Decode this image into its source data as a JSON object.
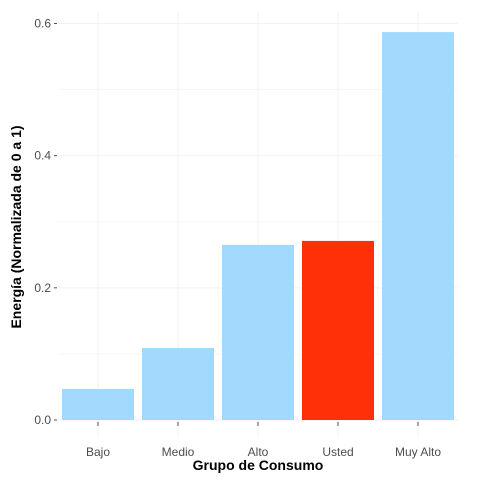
{
  "chart_data": {
    "type": "bar",
    "categories": [
      "Bajo",
      "Medio",
      "Alto",
      "Usted",
      "Muy Alto"
    ],
    "values": [
      0.047,
      0.109,
      0.265,
      0.271,
      0.587
    ],
    "colors": [
      "#a3d9fc",
      "#a3d9fc",
      "#a3d9fc",
      "#ff2f08",
      "#a3d9fc"
    ],
    "title": "",
    "xlabel": "Grupo de Consumo",
    "ylabel": "Energía (Normalizada de 0 a 1)",
    "ylim": [
      0,
      0.6
    ],
    "yticks": [
      "0.0",
      "0.2",
      "0.4",
      "0.6"
    ],
    "ytick_values": [
      0,
      0.2,
      0.4,
      0.6
    ],
    "grid": true,
    "legend": "none"
  }
}
